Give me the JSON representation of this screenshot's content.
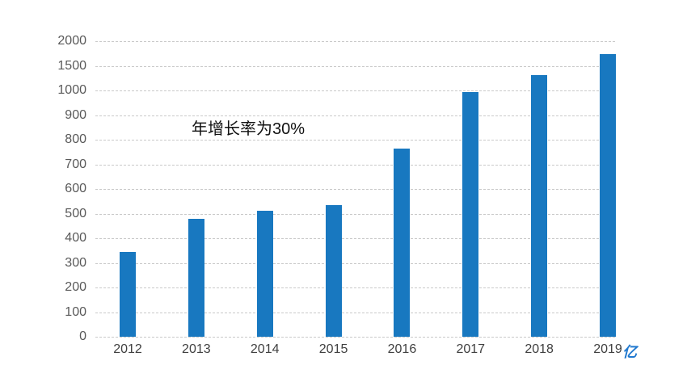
{
  "chart_data": {
    "type": "bar",
    "title": "",
    "xlabel": "",
    "ylabel": "",
    "categories": [
      "2012",
      "2013",
      "2014",
      "2015",
      "2016",
      "2017",
      "2018",
      "2019"
    ],
    "values": [
      345,
      480,
      510,
      535,
      765,
      995,
      1310,
      1735
    ],
    "yticks": [
      0,
      100,
      200,
      300,
      400,
      500,
      600,
      700,
      800,
      900,
      1000,
      1500,
      2000
    ],
    "ylim": [
      0,
      2000
    ],
    "axis_scale": "non-linear: 13 evenly spaced gridlines, 100 per step up to 1000, then 500 per step",
    "grid": "horizontal dashed lines on, no vertical axis line",
    "legend": "none",
    "annotation": "年增长率为30%",
    "unit_label": "亿",
    "bar_color": "#1878c0",
    "unit_label_color": "#2179cf",
    "gridline_color": "#c9c9c9",
    "tick_label_color": "#595959"
  }
}
